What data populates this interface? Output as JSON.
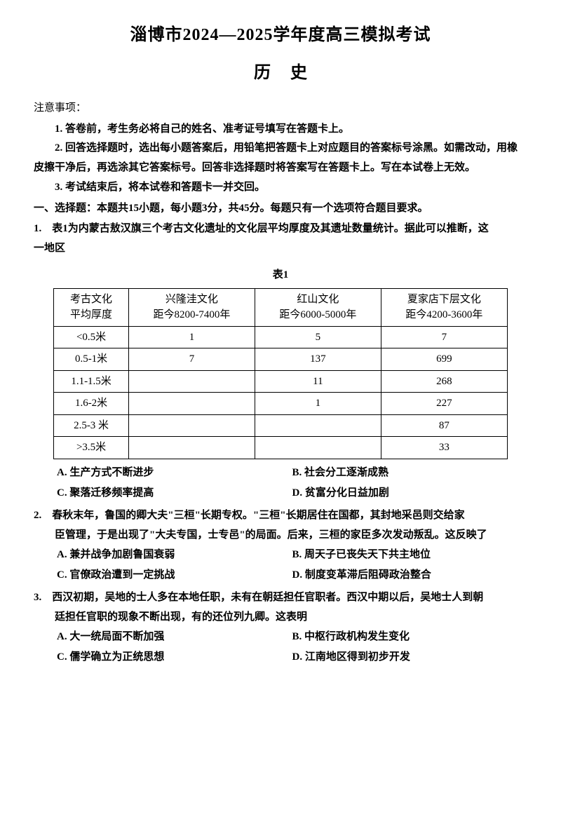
{
  "title": {
    "main": "淄博市2024—2025学年度高三模拟考试",
    "sub": "历史"
  },
  "notice": {
    "head": "注意事项：",
    "items": [
      "1. 答卷前，考生务必将自己的姓名、准考证号填写在答题卡上。",
      "2. 回答选择题时，选出每小题答案后，用铅笔把答题卡上对应题目的答案标号涂黑。如需改动，用橡皮擦干净后，再选涂其它答案标号。回答非选择题时将答案写在答题卡上。写在本试卷上无效。",
      "3. 考试结束后，将本试卷和答题卡一并交回。"
    ]
  },
  "section1_head": "一、选择题：本题共15小题，每小题3分，共45分。每题只有一个选项符合题目要求。",
  "q1": {
    "stem_line1": "1.　表1为内蒙古敖汉旗三个考古文化遗址的文化层平均厚度及其遗址数量统计。据此可以推断，这",
    "stem_line2": "一地区",
    "table_caption": "表1",
    "table": {
      "col0_head_l1": "考古文化",
      "col0_head_l2": "平均厚度",
      "cols": [
        {
          "l1": "兴隆洼文化",
          "l2": "距今8200-7400年"
        },
        {
          "l1": "红山文化",
          "l2": "距今6000-5000年"
        },
        {
          "l1": "夏家店下层文化",
          "l2": "距今4200-3600年"
        }
      ],
      "rows": [
        {
          "label": "<0.5米",
          "v": [
            "1",
            "5",
            "7"
          ]
        },
        {
          "label": "0.5-1米",
          "v": [
            "7",
            "137",
            "699"
          ]
        },
        {
          "label": "1.1-1.5米",
          "v": [
            "",
            "11",
            "268"
          ]
        },
        {
          "label": "1.6-2米",
          "v": [
            "",
            "1",
            "227"
          ]
        },
        {
          "label": "2.5-3 米",
          "v": [
            "",
            "",
            "87"
          ]
        },
        {
          "label": ">3.5米",
          "v": [
            "",
            "",
            "33"
          ]
        }
      ]
    },
    "opts": {
      "A": "A. 生产方式不断进步",
      "B": "B. 社会分工逐渐成熟",
      "C": "C. 聚落迁移频率提高",
      "D": "D. 贫富分化日益加剧"
    }
  },
  "q2": {
    "stem_line1": "2.　春秋末年，鲁国的卿大夫\"三桓\"长期专权。\"三桓\"长期居住在国都，其封地采邑则交给家",
    "stem_line2": "臣管理，于是出现了\"大夫专国，士专邑\"的局面。后来，三桓的家臣多次发动叛乱。这反映了",
    "opts": {
      "A": "A. 兼并战争加剧鲁国衰弱",
      "B": "B. 周天子已丧失天下共主地位",
      "C": "C. 官僚政治遭到一定挑战",
      "D": "D. 制度变革滞后阻碍政治整合"
    }
  },
  "q3": {
    "stem_line1": "3.　西汉初期，吴地的士人多在本地任职，未有在朝廷担任官职者。西汉中期以后，吴地士人到朝",
    "stem_line2": "廷担任官职的现象不断出现，有的还位列九卿。这表明",
    "opts": {
      "A": "A. 大一统局面不断加强",
      "B": "B. 中枢行政机构发生变化",
      "C": "C. 儒学确立为正统思想",
      "D": "D. 江南地区得到初步开发"
    }
  }
}
